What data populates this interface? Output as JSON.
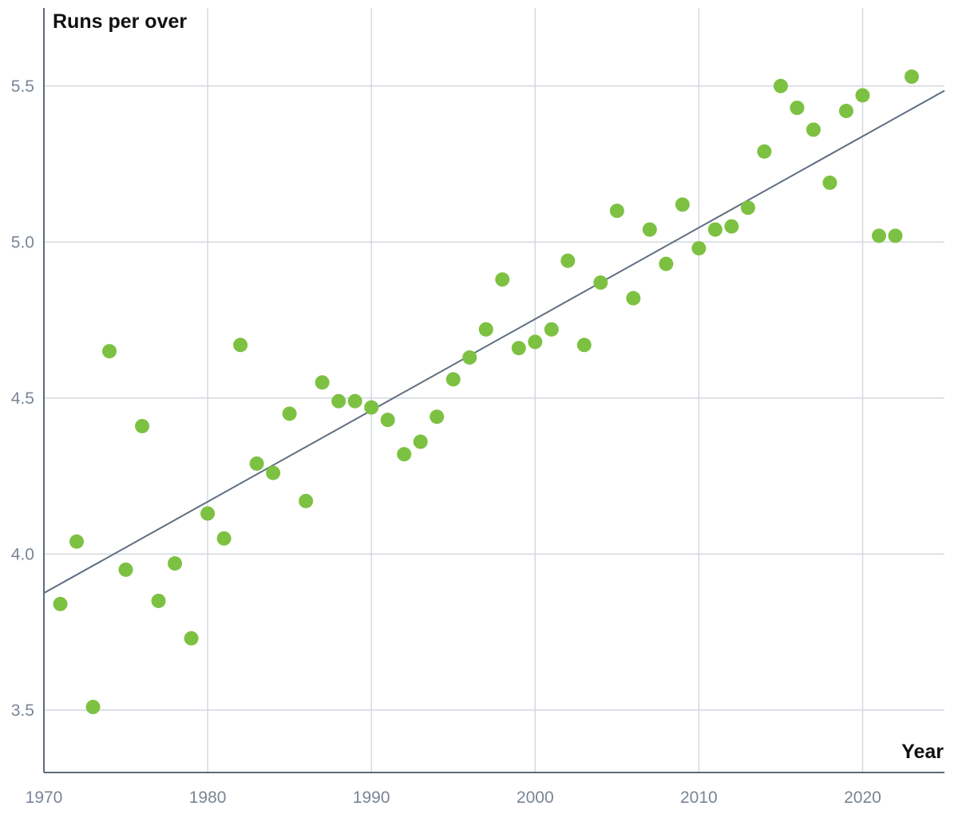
{
  "chart_data": {
    "type": "scatter",
    "xlabel": "Year",
    "ylabel": "Runs per over",
    "xlim": [
      1970,
      2025
    ],
    "ylim": [
      3.3,
      5.75
    ],
    "x_ticks": [
      1970,
      1980,
      1990,
      2000,
      2010,
      2020
    ],
    "y_ticks": [
      3.5,
      4.0,
      4.5,
      5.0,
      5.5
    ],
    "y_tick_labels": [
      "3.5",
      "4.0",
      "4.5",
      "5.0",
      "5.5"
    ],
    "grid": true,
    "point_color": "#7dc142",
    "trend_color": "#5f6e80",
    "trendline": {
      "x": [
        1970,
        2025
      ],
      "y": [
        3.875,
        5.485
      ]
    },
    "points": [
      {
        "x": 1971,
        "y": 3.84
      },
      {
        "x": 1972,
        "y": 4.04
      },
      {
        "x": 1973,
        "y": 3.51
      },
      {
        "x": 1974,
        "y": 4.65
      },
      {
        "x": 1975,
        "y": 3.95
      },
      {
        "x": 1976,
        "y": 4.41
      },
      {
        "x": 1977,
        "y": 3.85
      },
      {
        "x": 1978,
        "y": 3.97
      },
      {
        "x": 1979,
        "y": 3.73
      },
      {
        "x": 1980,
        "y": 4.13
      },
      {
        "x": 1981,
        "y": 4.05
      },
      {
        "x": 1982,
        "y": 4.67
      },
      {
        "x": 1983,
        "y": 4.29
      },
      {
        "x": 1984,
        "y": 4.26
      },
      {
        "x": 1985,
        "y": 4.45
      },
      {
        "x": 1986,
        "y": 4.17
      },
      {
        "x": 1987,
        "y": 4.55
      },
      {
        "x": 1988,
        "y": 4.49
      },
      {
        "x": 1989,
        "y": 4.49
      },
      {
        "x": 1990,
        "y": 4.47
      },
      {
        "x": 1991,
        "y": 4.43
      },
      {
        "x": 1992,
        "y": 4.32
      },
      {
        "x": 1993,
        "y": 4.36
      },
      {
        "x": 1994,
        "y": 4.44
      },
      {
        "x": 1995,
        "y": 4.56
      },
      {
        "x": 1996,
        "y": 4.63
      },
      {
        "x": 1997,
        "y": 4.72
      },
      {
        "x": 1998,
        "y": 4.88
      },
      {
        "x": 1999,
        "y": 4.66
      },
      {
        "x": 2000,
        "y": 4.68
      },
      {
        "x": 2001,
        "y": 4.72
      },
      {
        "x": 2002,
        "y": 4.94
      },
      {
        "x": 2003,
        "y": 4.67
      },
      {
        "x": 2004,
        "y": 4.87
      },
      {
        "x": 2005,
        "y": 5.1
      },
      {
        "x": 2006,
        "y": 4.82
      },
      {
        "x": 2007,
        "y": 5.04
      },
      {
        "x": 2008,
        "y": 4.93
      },
      {
        "x": 2009,
        "y": 5.12
      },
      {
        "x": 2010,
        "y": 4.98
      },
      {
        "x": 2011,
        "y": 5.04
      },
      {
        "x": 2012,
        "y": 5.05
      },
      {
        "x": 2013,
        "y": 5.11
      },
      {
        "x": 2014,
        "y": 5.29
      },
      {
        "x": 2015,
        "y": 5.5
      },
      {
        "x": 2016,
        "y": 5.43
      },
      {
        "x": 2017,
        "y": 5.36
      },
      {
        "x": 2018,
        "y": 5.19
      },
      {
        "x": 2019,
        "y": 5.42
      },
      {
        "x": 2020,
        "y": 5.47
      },
      {
        "x": 2021,
        "y": 5.02
      },
      {
        "x": 2022,
        "y": 5.02
      },
      {
        "x": 2023,
        "y": 5.53
      }
    ]
  }
}
